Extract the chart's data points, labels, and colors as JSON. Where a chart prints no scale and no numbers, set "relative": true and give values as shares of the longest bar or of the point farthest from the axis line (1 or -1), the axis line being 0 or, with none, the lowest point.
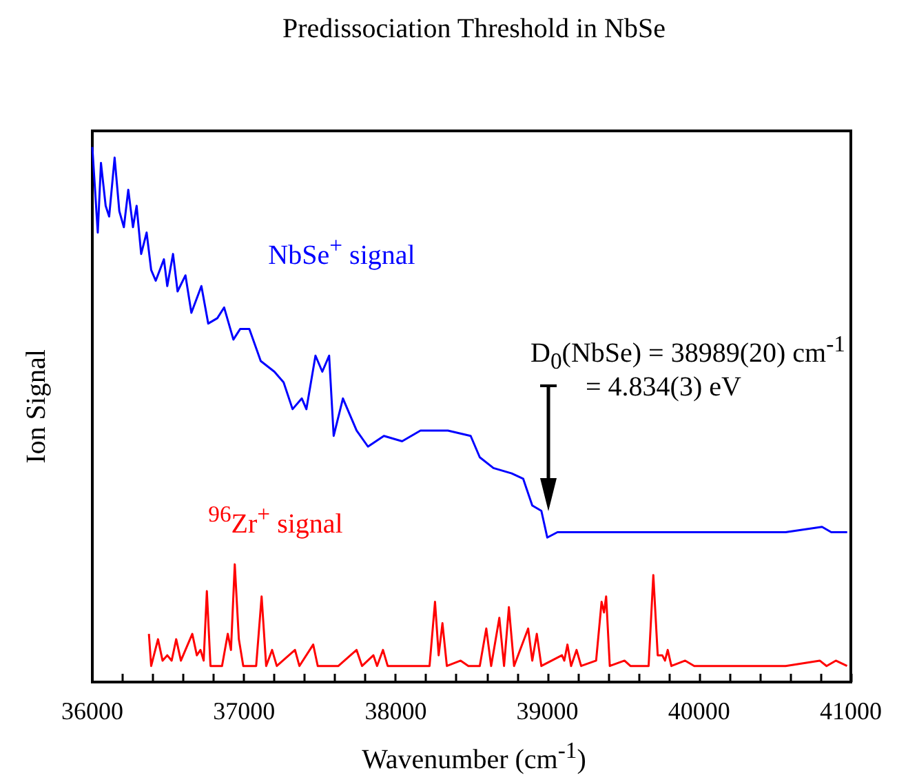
{
  "chart_data": {
    "type": "line",
    "title": "Predissociation Threshold in NbSe",
    "xlabel": "Wavenumber (cm$^{-1}$)",
    "ylabel": "Ion Signal",
    "relative": true,
    "xlim": [
      36000,
      41000
    ],
    "xticks": [
      36000,
      {
        "value": 36200,
        "label": null
      },
      {
        "value": 36400,
        "label": null
      },
      {
        "value": 36600,
        "label": null
      },
      {
        "value": 36800,
        "label": null
      },
      37000,
      {
        "value": 37200,
        "label": null
      },
      {
        "value": 37400,
        "label": null
      },
      {
        "value": 37600,
        "label": null
      },
      {
        "value": 37800,
        "label": null
      },
      38000,
      {
        "value": 38200,
        "label": null
      },
      {
        "value": 38400,
        "label": null
      },
      {
        "value": 38600,
        "label": null
      },
      {
        "value": 38800,
        "label": null
      },
      39000,
      {
        "value": 39200,
        "label": null
      },
      {
        "value": 39400,
        "label": null
      },
      {
        "value": 39600,
        "label": null
      },
      {
        "value": 39800,
        "label": null
      },
      40000,
      {
        "value": 40200,
        "label": null
      },
      {
        "value": 40400,
        "label": null
      },
      {
        "value": 40600,
        "label": null
      },
      {
        "value": 40800,
        "label": null
      },
      41000
    ],
    "grid": false,
    "marker": "none",
    "line_style": "solid",
    "annotations": [
      "D$_{0}$(NbSe) = 38989(20) cm$^{-1}$",
      "=  4.834(3) eV"
    ],
    "series": [
      {
        "name": "NbSe$^{+}$ signal",
        "color": "#0000ff",
        "x": [
          36000,
          36036,
          36057,
          36088,
          36111,
          36147,
          36178,
          36208,
          36237,
          36268,
          36292,
          36322,
          36358,
          36388,
          36418,
          36472,
          36494,
          36532,
          36562,
          36614,
          36653,
          36719,
          36764,
          36824,
          36869,
          36930,
          36975,
          37035,
          37110,
          37200,
          37261,
          37320,
          37381,
          37411,
          37471,
          37516,
          37561,
          37591,
          37652,
          37742,
          37817,
          37922,
          38042,
          38163,
          38344,
          38494,
          38554,
          38644,
          38764,
          38840,
          38900,
          38960,
          38999,
          39066,
          39366,
          39667,
          39968,
          40269,
          40570,
          40810,
          40871,
          40976
        ],
        "values": [
          1.0,
          0.84,
          0.97,
          0.89,
          0.87,
          0.98,
          0.88,
          0.85,
          0.92,
          0.85,
          0.89,
          0.8,
          0.84,
          0.77,
          0.75,
          0.79,
          0.74,
          0.8,
          0.73,
          0.76,
          0.69,
          0.74,
          0.67,
          0.68,
          0.7,
          0.64,
          0.66,
          0.66,
          0.6,
          0.58,
          0.56,
          0.51,
          0.53,
          0.51,
          0.61,
          0.58,
          0.61,
          0.46,
          0.53,
          0.47,
          0.44,
          0.46,
          0.45,
          0.47,
          0.47,
          0.46,
          0.42,
          0.4,
          0.39,
          0.38,
          0.33,
          0.32,
          0.27,
          0.28,
          0.28,
          0.28,
          0.28,
          0.28,
          0.28,
          0.29,
          0.28,
          0.28
        ]
      },
      {
        "name": "$^{96}$Zr$^{+}$ signal",
        "color": "#ff0000",
        "x": [
          36373,
          36388,
          36433,
          36463,
          36494,
          36523,
          36553,
          36584,
          36659,
          36689,
          36713,
          36734,
          36755,
          36779,
          36855,
          36893,
          36914,
          36939,
          36966,
          36995,
          37080,
          37116,
          37146,
          37185,
          37216,
          37336,
          37365,
          37456,
          37486,
          37622,
          37742,
          37778,
          37853,
          37877,
          37916,
          37947,
          38103,
          38169,
          38223,
          38259,
          38283,
          38308,
          38337,
          38428,
          38479,
          38554,
          38597,
          38629,
          38683,
          38714,
          38746,
          38780,
          38873,
          38900,
          38930,
          38960,
          39096,
          39111,
          39132,
          39156,
          39192,
          39222,
          39321,
          39357,
          39373,
          39387,
          39411,
          39508,
          39547,
          39667,
          39698,
          39727,
          39757,
          39775,
          39793,
          39817,
          39908,
          39968,
          40269,
          40570,
          40795,
          40840,
          40901,
          40975
        ],
        "values": [
          0.09,
          0.03,
          0.08,
          0.04,
          0.05,
          0.04,
          0.08,
          0.04,
          0.09,
          0.05,
          0.06,
          0.04,
          0.17,
          0.03,
          0.03,
          0.09,
          0.06,
          0.22,
          0.08,
          0.03,
          0.03,
          0.16,
          0.03,
          0.06,
          0.03,
          0.06,
          0.03,
          0.07,
          0.03,
          0.03,
          0.06,
          0.03,
          0.05,
          0.03,
          0.06,
          0.03,
          0.03,
          0.03,
          0.03,
          0.15,
          0.05,
          0.11,
          0.03,
          0.04,
          0.03,
          0.03,
          0.1,
          0.03,
          0.12,
          0.03,
          0.14,
          0.03,
          0.1,
          0.04,
          0.09,
          0.03,
          0.05,
          0.04,
          0.07,
          0.03,
          0.06,
          0.03,
          0.04,
          0.15,
          0.13,
          0.16,
          0.03,
          0.04,
          0.03,
          0.03,
          0.2,
          0.05,
          0.05,
          0.04,
          0.06,
          0.03,
          0.04,
          0.03,
          0.03,
          0.03,
          0.04,
          0.03,
          0.04,
          0.03
        ]
      }
    ]
  }
}
